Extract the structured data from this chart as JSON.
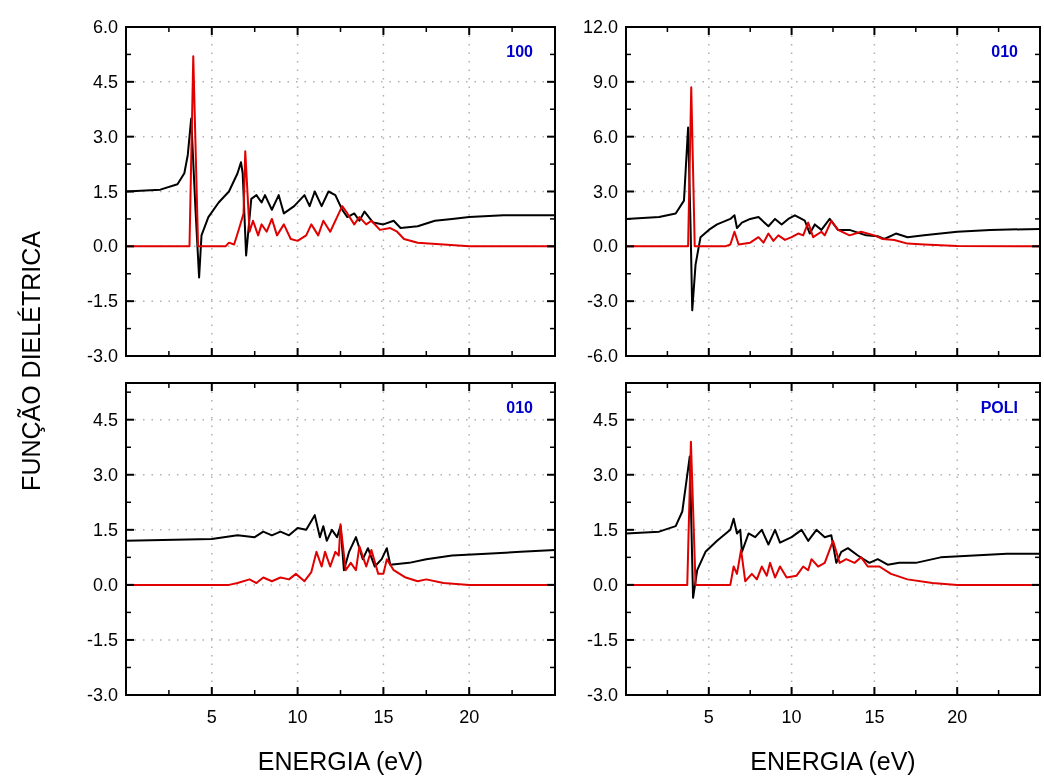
{
  "chart_data": [
    {
      "type": "line",
      "ylabel": "FUNÇÃO DIELÉTRICA",
      "annotations": [
        "100"
      ],
      "xlim": [
        0,
        25
      ],
      "xticks": [
        5,
        10,
        15,
        20
      ],
      "ylim": [
        -3,
        6
      ],
      "yticks": [
        {
          "value": -3,
          "label": "-3.0"
        },
        {
          "value": -1.5,
          "label": "-1.5"
        },
        {
          "value": 0,
          "label": "0.0"
        },
        {
          "value": 1.5,
          "label": "1.5"
        },
        {
          "value": 3,
          "label": "3.0"
        },
        {
          "value": 4.5,
          "label": "4.5"
        },
        {
          "value": 6,
          "label": "6.0"
        }
      ],
      "grid": true,
      "tick_labels": "y",
      "series": [
        {
          "color": "#000000",
          "x": [
            0,
            2,
            3,
            3.4,
            3.6,
            3.8,
            4.05,
            4.26,
            4.4,
            4.8,
            5.4,
            6.0,
            6.5,
            6.7,
            6.8,
            7.0,
            7.3,
            7.6,
            7.9,
            8.1,
            8.5,
            8.9,
            9.2,
            9.8,
            10.4,
            10.7,
            11.0,
            11.4,
            11.8,
            12.2,
            12.6,
            12.9,
            13.3,
            13.6,
            13.9,
            14.4,
            15.0,
            15.6,
            16.0,
            17,
            18,
            19,
            20,
            22,
            25
          ],
          "values": [
            1.5,
            1.55,
            1.7,
            2.0,
            2.5,
            3.5,
            1.0,
            -0.85,
            0.3,
            0.8,
            1.2,
            1.5,
            2.0,
            2.3,
            2.0,
            -0.25,
            1.3,
            1.4,
            1.2,
            1.4,
            1.0,
            1.4,
            0.9,
            1.1,
            1.4,
            1.1,
            1.5,
            1.1,
            1.5,
            1.4,
            1.0,
            0.8,
            0.9,
            0.7,
            0.95,
            0.65,
            0.6,
            0.7,
            0.5,
            0.55,
            0.7,
            0.75,
            0.8,
            0.85,
            0.85
          ]
        },
        {
          "color": "#e00000",
          "x": [
            0,
            3.7,
            3.92,
            4.2,
            5.8,
            6.0,
            6.3,
            6.6,
            6.85,
            6.95,
            7.2,
            7.4,
            7.7,
            7.9,
            8.2,
            8.5,
            8.8,
            9.2,
            9.6,
            10.0,
            10.5,
            10.8,
            11.2,
            11.5,
            11.9,
            12.3,
            12.6,
            12.9,
            13.3,
            13.6,
            14.0,
            14.3,
            14.8,
            15.4,
            15.8,
            16.2,
            17,
            18.5,
            20,
            25
          ],
          "values": [
            0,
            0,
            5.2,
            0,
            0,
            0.1,
            0.05,
            0.5,
            0.9,
            2.6,
            0.4,
            0.7,
            0.3,
            0.6,
            0.4,
            0.75,
            0.3,
            0.6,
            0.2,
            0.15,
            0.3,
            0.6,
            0.3,
            0.7,
            0.4,
            0.8,
            1.1,
            0.9,
            0.6,
            0.8,
            0.6,
            0.7,
            0.45,
            0.5,
            0.4,
            0.2,
            0.1,
            0.05,
            0,
            0
          ]
        }
      ]
    },
    {
      "type": "line",
      "annotations": [
        "010"
      ],
      "xlim": [
        0,
        25
      ],
      "xticks": [
        5,
        10,
        15,
        20
      ],
      "ylim": [
        -6,
        12
      ],
      "yticks": [
        {
          "value": -6,
          "label": "-6.0"
        },
        {
          "value": -3,
          "label": "-3.0"
        },
        {
          "value": 0,
          "label": "0.0"
        },
        {
          "value": 3,
          "label": "3.0"
        },
        {
          "value": 6,
          "label": "6.0"
        },
        {
          "value": 9,
          "label": "9.0"
        },
        {
          "value": 12,
          "label": "12.0"
        }
      ],
      "grid": true,
      "tick_labels": "y",
      "series": [
        {
          "color": "#000000",
          "x": [
            0,
            2,
            3,
            3.5,
            3.75,
            3.9,
            4.0,
            4.2,
            4.5,
            5,
            5.5,
            6.3,
            6.55,
            6.7,
            7,
            7.5,
            8,
            8.6,
            9,
            9.4,
            9.8,
            10.2,
            10.8,
            11.1,
            11.4,
            11.8,
            12.3,
            12.8,
            13.5,
            14.5,
            15.2,
            15.6,
            16.3,
            17,
            18,
            20,
            22,
            25
          ],
          "values": [
            1.5,
            1.6,
            1.8,
            2.5,
            6.5,
            1.0,
            -3.5,
            -1,
            0.5,
            0.9,
            1.2,
            1.5,
            1.7,
            1.0,
            1.3,
            1.5,
            1.6,
            1.1,
            1.5,
            1.2,
            1.5,
            1.7,
            1.4,
            0.7,
            1.2,
            0.9,
            1.5,
            0.9,
            0.9,
            0.6,
            0.55,
            0.4,
            0.7,
            0.5,
            0.6,
            0.8,
            0.9,
            0.95
          ]
        },
        {
          "color": "#e00000",
          "x": [
            0,
            3.75,
            3.94,
            4.15,
            6.0,
            6.3,
            6.55,
            6.8,
            7.5,
            8.0,
            8.3,
            8.6,
            8.9,
            9.2,
            9.6,
            10,
            10.4,
            10.7,
            11.0,
            11.3,
            11.8,
            12.0,
            12.4,
            12.8,
            13.5,
            14.2,
            15,
            15.5,
            16.2,
            17,
            18,
            20,
            25
          ],
          "values": [
            0,
            0,
            8.7,
            0,
            0,
            0.1,
            0.8,
            0.1,
            0.2,
            0.5,
            0.2,
            0.7,
            0.3,
            0.6,
            0.35,
            0.5,
            0.7,
            0.6,
            1.3,
            0.5,
            0.8,
            0.6,
            1.4,
            0.9,
            0.6,
            0.8,
            0.6,
            0.4,
            0.35,
            0.15,
            0.1,
            0.02,
            0
          ]
        }
      ]
    },
    {
      "type": "line",
      "annotations": [
        "010"
      ],
      "xlabel": "ENERGIA (eV)",
      "xlim": [
        0,
        25
      ],
      "xticks": [
        5,
        10,
        15,
        20
      ],
      "ylim": [
        -3,
        5.5
      ],
      "yticks": [
        {
          "value": -3,
          "label": "-3.0"
        },
        {
          "value": -1.5,
          "label": "-1.5"
        },
        {
          "value": 0,
          "label": "0.0"
        },
        {
          "value": 1.5,
          "label": "1.5"
        },
        {
          "value": 3,
          "label": "3.0"
        },
        {
          "value": 4.5,
          "label": "4.5"
        }
      ],
      "grid": true,
      "series": [
        {
          "color": "#000000",
          "x": [
            0,
            5,
            6.5,
            7.5,
            8,
            8.5,
            9,
            9.5,
            10,
            10.5,
            11.0,
            11.3,
            11.5,
            11.7,
            12.0,
            12.3,
            12.5,
            12.7,
            13.0,
            13.4,
            13.8,
            14.1,
            14.5,
            14.9,
            15.2,
            15.4,
            16.5,
            17.5,
            19,
            21,
            23,
            25
          ],
          "values": [
            1.2,
            1.25,
            1.35,
            1.3,
            1.45,
            1.35,
            1.45,
            1.35,
            1.55,
            1.5,
            1.9,
            1.3,
            1.6,
            1.2,
            1.5,
            1.3,
            1.6,
            0.4,
            0.9,
            1.3,
            0.7,
            1.0,
            0.5,
            0.7,
            1.0,
            0.55,
            0.6,
            0.7,
            0.8,
            0.85,
            0.9,
            0.95
          ]
        },
        {
          "color": "#e00000",
          "x": [
            0,
            6,
            6.5,
            7.2,
            7.6,
            8.0,
            8.5,
            9.0,
            9.5,
            9.9,
            10.4,
            10.8,
            11.1,
            11.4,
            11.6,
            11.9,
            12.2,
            12.4,
            12.5,
            12.8,
            13.1,
            13.4,
            13.6,
            14,
            14.3,
            14.7,
            15.0,
            15.2,
            15.6,
            16.3,
            17,
            17.5,
            18.5,
            20,
            25
          ],
          "values": [
            0,
            0,
            0.05,
            0.15,
            0.05,
            0.2,
            0.1,
            0.2,
            0.15,
            0.3,
            0.1,
            0.35,
            0.9,
            0.5,
            0.9,
            0.5,
            0.9,
            0.8,
            1.65,
            0.4,
            0.6,
            0.4,
            1.05,
            0.5,
            0.95,
            0.3,
            0.3,
            0.7,
            0.4,
            0.2,
            0.1,
            0.15,
            0.05,
            0,
            0
          ]
        }
      ]
    },
    {
      "type": "line",
      "annotations": [
        "POLI"
      ],
      "xlabel": "ENERGIA (eV)",
      "xlim": [
        0,
        25
      ],
      "xticks": [
        5,
        10,
        15,
        20
      ],
      "ylim": [
        -3,
        5.5
      ],
      "yticks": [
        {
          "value": -3,
          "label": "-3.0"
        },
        {
          "value": -1.5,
          "label": "-1.5"
        },
        {
          "value": 0,
          "label": "0.0"
        },
        {
          "value": 1.5,
          "label": "1.5"
        },
        {
          "value": 3,
          "label": "3.0"
        },
        {
          "value": 4.5,
          "label": "4.5"
        }
      ],
      "grid": true,
      "series": [
        {
          "color": "#000000",
          "x": [
            0,
            2,
            3,
            3.4,
            3.7,
            3.85,
            4.05,
            4.3,
            4.8,
            5.5,
            6.3,
            6.5,
            6.7,
            6.9,
            7.0,
            7.4,
            7.8,
            8.2,
            8.6,
            9.0,
            9.3,
            10,
            10.6,
            11,
            11.5,
            12,
            12.4,
            12.7,
            13.0,
            13.4,
            14,
            14.7,
            15.2,
            15.8,
            16.5,
            17.5,
            19,
            21,
            23,
            25
          ],
          "values": [
            1.4,
            1.45,
            1.6,
            2.0,
            3.0,
            3.5,
            -0.35,
            0.4,
            0.9,
            1.2,
            1.5,
            1.8,
            1.4,
            1.5,
            0.9,
            1.4,
            1.3,
            1.5,
            1.1,
            1.5,
            1.15,
            1.3,
            1.5,
            1.2,
            1.5,
            1.3,
            1.35,
            0.6,
            0.9,
            1.0,
            0.8,
            0.6,
            0.7,
            0.55,
            0.6,
            0.6,
            0.75,
            0.8,
            0.85,
            0.85
          ]
        },
        {
          "color": "#e00000",
          "x": [
            0,
            3.7,
            3.92,
            4.2,
            6.3,
            6.5,
            6.7,
            6.95,
            7.2,
            7.6,
            7.9,
            8.2,
            8.5,
            8.7,
            9.0,
            9.3,
            9.7,
            10.3,
            10.7,
            11,
            11.2,
            11.6,
            12.0,
            12.5,
            12.9,
            13.3,
            13.8,
            14.2,
            14.6,
            15.3,
            16,
            17,
            18.5,
            20,
            25
          ],
          "values": [
            0,
            0,
            3.9,
            0,
            0,
            0.5,
            0.3,
            0.95,
            0.1,
            0.3,
            0.15,
            0.5,
            0.25,
            0.6,
            0.2,
            0.5,
            0.2,
            0.25,
            0.5,
            0.4,
            0.7,
            0.5,
            0.6,
            1.2,
            0.6,
            0.7,
            0.6,
            0.75,
            0.5,
            0.5,
            0.3,
            0.15,
            0.05,
            0,
            0
          ]
        }
      ]
    }
  ]
}
